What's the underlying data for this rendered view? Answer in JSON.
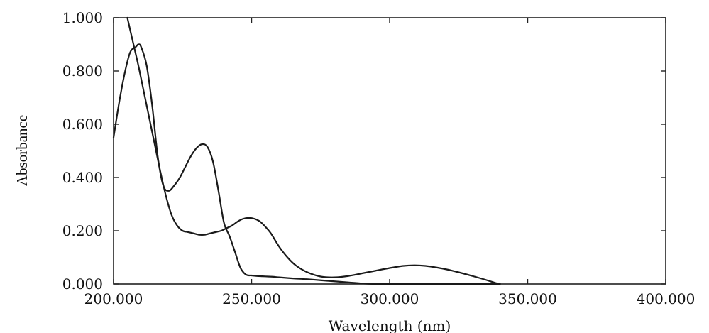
{
  "chart_data": {
    "type": "line",
    "title": "",
    "xlabel": "Wavelength (nm)",
    "ylabel": "Absorbance",
    "xlim": [
      200,
      400
    ],
    "ylim": [
      0,
      1
    ],
    "x_ticks": [
      200,
      250,
      300,
      350,
      400
    ],
    "y_ticks": [
      0,
      0.2,
      0.4,
      0.6,
      0.8,
      1.0
    ],
    "x_tick_labels": [
      "200.000",
      "250.000",
      "300.000",
      "350.000",
      "400.000"
    ],
    "y_tick_labels": [
      "0.000",
      "0.200",
      "0.400",
      "0.600",
      "0.800",
      "1.000"
    ],
    "grid": false,
    "line_color": "#1a1a1a",
    "series": [
      {
        "x": [
          200,
          202,
          204,
          206,
          208,
          209,
          210,
          212,
          214,
          216,
          218,
          220,
          222,
          224,
          226,
          228,
          230,
          232,
          234,
          236,
          238,
          240,
          242,
          244,
          246,
          248,
          250,
          252,
          254,
          256,
          258,
          260,
          265,
          270,
          275,
          280,
          285,
          290,
          295,
          300,
          305,
          309,
          312,
          316,
          320,
          325,
          330,
          335,
          340
        ],
        "y": [
          0.55,
          0.68,
          0.79,
          0.87,
          0.89,
          0.9,
          0.89,
          0.82,
          0.67,
          0.48,
          0.37,
          0.35,
          0.37,
          0.4,
          0.44,
          0.48,
          0.51,
          0.525,
          0.515,
          0.46,
          0.35,
          0.23,
          0.18,
          0.12,
          0.06,
          0.035,
          0.032,
          0.03,
          0.029,
          0.028,
          0.027,
          0.025,
          0.021,
          0.018,
          0.014,
          0.01,
          0.006,
          0.002,
          0.0,
          0.0,
          0.0,
          0.0,
          0.0,
          0.0,
          0.0,
          0.0,
          0.0,
          0.0,
          0.0
        ]
      },
      {
        "x": [
          205,
          207,
          209,
          211,
          213,
          215,
          217,
          219,
          221,
          223,
          225,
          227,
          229,
          231,
          233,
          235,
          237,
          239,
          241,
          243,
          245,
          247,
          249,
          251,
          253,
          255,
          257,
          260,
          263,
          266,
          270,
          275,
          280,
          285,
          290,
          295,
          300,
          305,
          309,
          313,
          317,
          321,
          325,
          330,
          335,
          338,
          340
        ],
        "y": [
          1.0,
          0.91,
          0.82,
          0.72,
          0.62,
          0.52,
          0.42,
          0.33,
          0.26,
          0.22,
          0.2,
          0.195,
          0.19,
          0.185,
          0.185,
          0.19,
          0.195,
          0.2,
          0.21,
          0.22,
          0.235,
          0.245,
          0.248,
          0.245,
          0.235,
          0.215,
          0.19,
          0.14,
          0.1,
          0.07,
          0.045,
          0.028,
          0.025,
          0.03,
          0.04,
          0.05,
          0.06,
          0.068,
          0.07,
          0.068,
          0.062,
          0.054,
          0.044,
          0.03,
          0.015,
          0.005,
          0.0
        ]
      }
    ]
  }
}
